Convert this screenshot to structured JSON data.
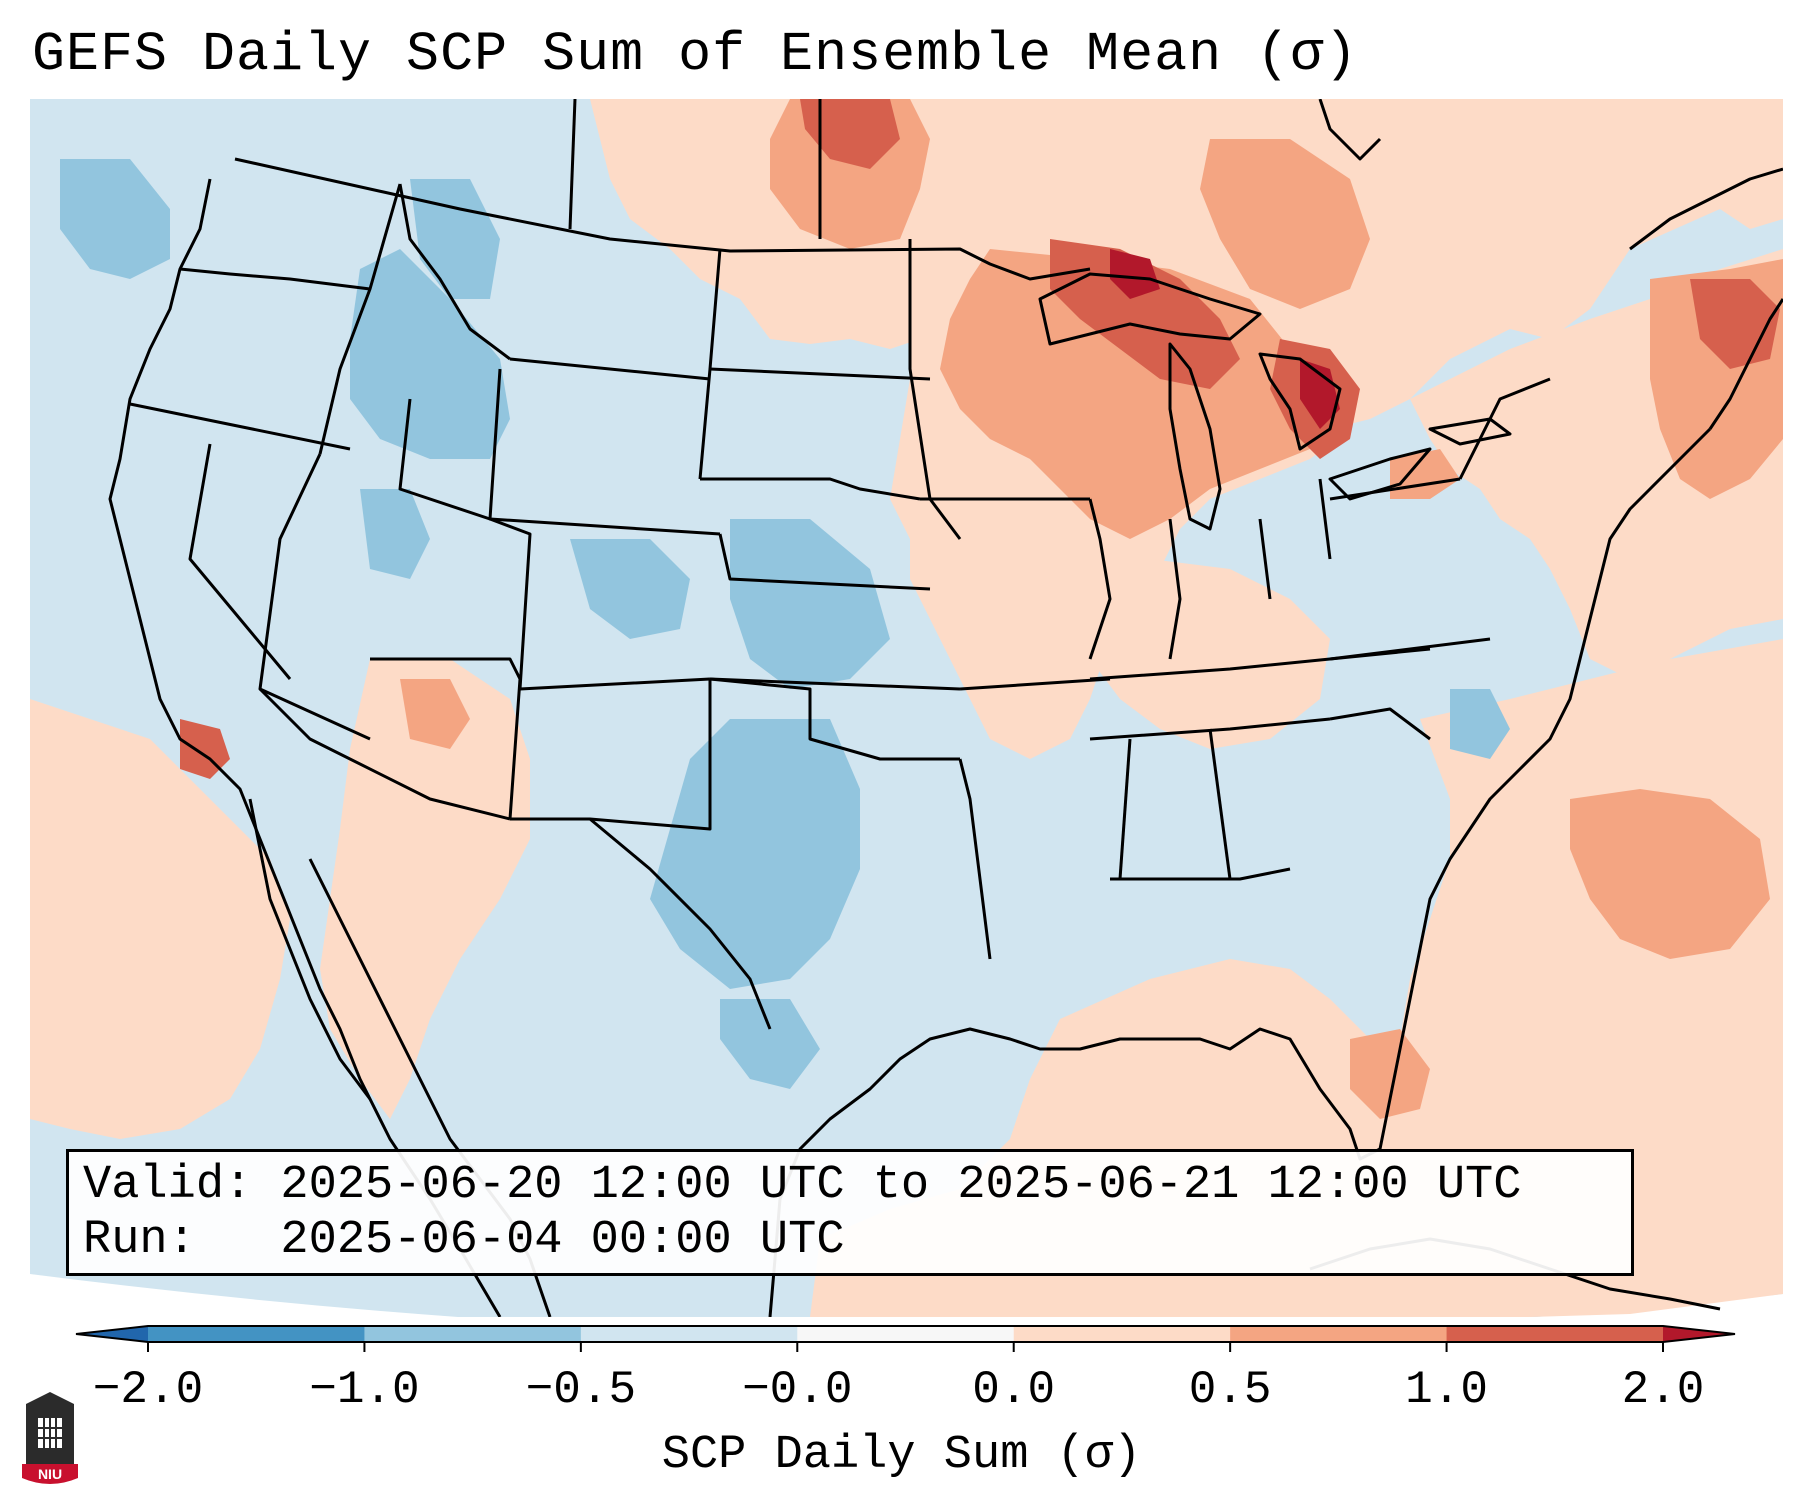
{
  "title": "GEFS Daily SCP Sum of Ensemble Mean (σ)",
  "valid_line": "Valid: 2025-06-20 12:00 UTC to 2025-06-21 12:00 UTC",
  "run_line": "Run:   2025-06-04 00:00 UTC",
  "colorbar": {
    "label": "SCP Daily Sum (σ)",
    "ticks": [
      "−2.0",
      "−1.0",
      "−0.5",
      "−0.0",
      "0.0",
      "0.5",
      "1.0",
      "2.0"
    ],
    "bins": [
      {
        "from": -2.0,
        "to": -1.0,
        "color": "#4393c3"
      },
      {
        "from": -1.0,
        "to": -0.5,
        "color": "#92c5de"
      },
      {
        "from": -0.5,
        "to": -0.0,
        "color": "#d1e5f0"
      },
      {
        "from": -0.0,
        "to": 0.0,
        "color": "#f7f7f7"
      },
      {
        "from": 0.0,
        "to": 0.5,
        "color": "#fddbc7"
      },
      {
        "from": 0.5,
        "to": 1.0,
        "color": "#f4a582"
      },
      {
        "from": 1.0,
        "to": 2.0,
        "color": "#d6604d"
      }
    ],
    "under_color": "#2166ac",
    "over_color": "#b2182b"
  },
  "colors": {
    "strong_negative": "#92c5de",
    "weak_negative": "#d1e5f0",
    "weak_positive": "#fddbc7",
    "moderate_positive": "#f4a582",
    "strong_positive": "#d6604d",
    "extreme_positive": "#b2182b"
  },
  "logo_text": "NIU"
}
